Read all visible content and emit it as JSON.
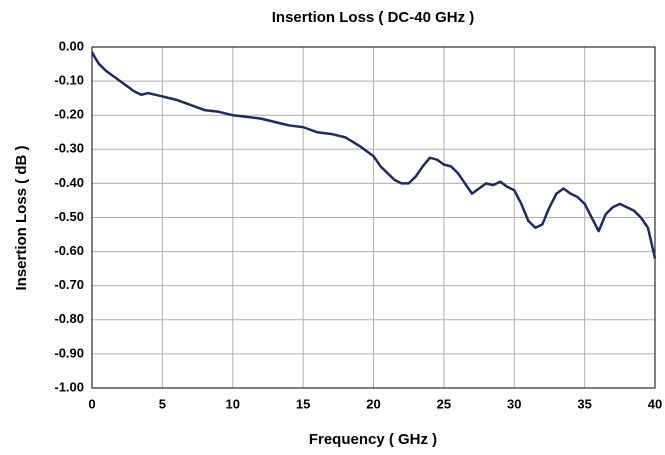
{
  "chart_data": {
    "type": "line",
    "title": "Insertion Loss ( DC-40 GHz )",
    "x_label": "Frequency ( GHz )",
    "y_label": "Insertion Loss ( dB )",
    "x": [
      0,
      0.2,
      0.5,
      1,
      2,
      3,
      3.5,
      4,
      5,
      6,
      7,
      8,
      9,
      10,
      11,
      12,
      13,
      14,
      15,
      16,
      17,
      18,
      19,
      20,
      20.5,
      21,
      21.5,
      22,
      22.5,
      23,
      23.5,
      24,
      24.5,
      25,
      25.5,
      26,
      26.5,
      27,
      27.5,
      28,
      28.5,
      29,
      29.5,
      30,
      30.5,
      31,
      31.5,
      32,
      32.5,
      33,
      33.5,
      34,
      34.5,
      35,
      35.5,
      36,
      36.5,
      37,
      37.5,
      38,
      38.5,
      39,
      39.5,
      40
    ],
    "series": [
      {
        "name": "Insertion Loss",
        "color": "#1f2a5e",
        "values": [
          -0.015,
          -0.03,
          -0.05,
          -0.07,
          -0.1,
          -0.13,
          -0.14,
          -0.135,
          -0.145,
          -0.155,
          -0.17,
          -0.185,
          -0.19,
          -0.2,
          -0.205,
          -0.21,
          -0.22,
          -0.23,
          -0.235,
          -0.25,
          -0.255,
          -0.265,
          -0.29,
          -0.32,
          -0.35,
          -0.37,
          -0.39,
          -0.4,
          -0.4,
          -0.38,
          -0.35,
          -0.325,
          -0.33,
          -0.345,
          -0.35,
          -0.37,
          -0.4,
          -0.43,
          -0.415,
          -0.4,
          -0.405,
          -0.395,
          -0.41,
          -0.42,
          -0.46,
          -0.51,
          -0.53,
          -0.52,
          -0.47,
          -0.43,
          -0.415,
          -0.43,
          -0.44,
          -0.46,
          -0.5,
          -0.54,
          -0.49,
          -0.47,
          -0.46,
          -0.47,
          -0.48,
          -0.5,
          -0.53,
          -0.62
        ]
      }
    ],
    "xlim": [
      0,
      40
    ],
    "xticks": [
      0,
      5,
      10,
      15,
      20,
      25,
      30,
      35,
      40
    ],
    "ylim": [
      -1,
      0
    ],
    "yticks": [
      {
        "value": 0,
        "label": "0.00"
      },
      {
        "value": -0.1,
        "label": "-0.10"
      },
      {
        "value": -0.2,
        "label": "-0.20"
      },
      {
        "value": -0.3,
        "label": "-0.30"
      },
      {
        "value": -0.4,
        "label": "-0.40"
      },
      {
        "value": -0.5,
        "label": "-0.50"
      },
      {
        "value": -0.6,
        "label": "-0.60"
      },
      {
        "value": -0.7,
        "label": "-0.70"
      },
      {
        "value": -0.8,
        "label": "-0.80"
      },
      {
        "value": -0.9,
        "label": "-0.90"
      },
      {
        "value": -1,
        "label": "-1.00"
      }
    ],
    "grid": true
  }
}
